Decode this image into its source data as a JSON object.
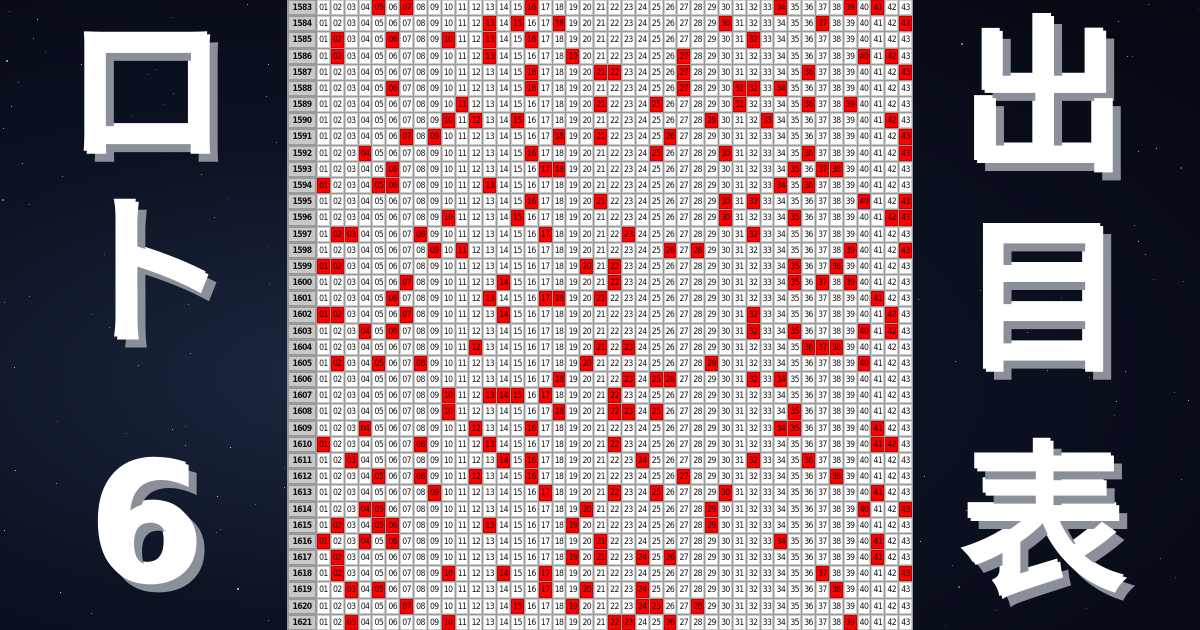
{
  "left_title": [
    "ロ",
    "ト",
    "6"
  ],
  "right_title": [
    "出",
    "目",
    "表"
  ],
  "colors": {
    "hit": "#ff0000",
    "background": "#0c1222",
    "text": "#ffffff"
  },
  "numbers": [
    "01",
    "02",
    "03",
    "04",
    "05",
    "06",
    "07",
    "08",
    "09",
    "10",
    "11",
    "12",
    "13",
    "14",
    "15",
    "16",
    "17",
    "18",
    "19",
    "20",
    "21",
    "22",
    "23",
    "24",
    "25",
    "26",
    "27",
    "28",
    "29",
    "30",
    "31",
    "32",
    "33",
    "34",
    "35",
    "36",
    "37",
    "38",
    "39",
    "40",
    "41",
    "42",
    "43"
  ],
  "draws": [
    {
      "no": "1583",
      "hits": [
        5,
        7,
        16,
        34,
        39,
        41
      ]
    },
    {
      "no": "1584",
      "hits": [
        13,
        15,
        18,
        30,
        37,
        43
      ]
    },
    {
      "no": "1585",
      "hits": [
        2,
        6,
        10,
        13,
        16,
        32
      ]
    },
    {
      "no": "1586",
      "hits": [
        2,
        13,
        19,
        27,
        40,
        42
      ]
    },
    {
      "no": "1587",
      "hits": [
        16,
        21,
        22,
        27,
        36,
        43
      ]
    },
    {
      "no": "1588",
      "hits": [
        6,
        16,
        27,
        31,
        32,
        34
      ]
    },
    {
      "no": "1589",
      "hits": [
        11,
        21,
        25,
        31,
        36,
        39
      ]
    },
    {
      "no": "1590",
      "hits": [
        10,
        12,
        15,
        29,
        33,
        42
      ]
    },
    {
      "no": "1591",
      "hits": [
        7,
        9,
        18,
        21,
        26,
        43
      ]
    },
    {
      "no": "1592",
      "hits": [
        4,
        16,
        25,
        30,
        36,
        43
      ]
    },
    {
      "no": "1593",
      "hits": [
        6,
        17,
        18,
        35,
        37,
        38
      ]
    },
    {
      "no": "1594",
      "hits": [
        1,
        5,
        6,
        13,
        34,
        36
      ]
    },
    {
      "no": "1595",
      "hits": [
        16,
        21,
        30,
        32,
        40,
        43
      ]
    },
    {
      "no": "1596",
      "hits": [
        10,
        15,
        30,
        35,
        42,
        43
      ]
    },
    {
      "no": "1597",
      "hits": [
        2,
        3,
        8,
        17,
        23,
        32
      ]
    },
    {
      "no": "1598",
      "hits": [
        9,
        11,
        26,
        28,
        39,
        43
      ]
    },
    {
      "no": "1599",
      "hits": [
        1,
        2,
        20,
        22,
        35,
        38
      ]
    },
    {
      "no": "1600",
      "hits": [
        7,
        14,
        22,
        35,
        37,
        39
      ]
    },
    {
      "no": "1601",
      "hits": [
        6,
        13,
        17,
        18,
        21,
        41
      ]
    },
    {
      "no": "1602",
      "hits": [
        1,
        2,
        7,
        14,
        32,
        42
      ]
    },
    {
      "no": "1603",
      "hits": [
        4,
        6,
        32,
        35,
        40,
        42
      ]
    },
    {
      "no": "1604",
      "hits": [
        12,
        21,
        23,
        36,
        37,
        38
      ]
    },
    {
      "no": "1605",
      "hits": [
        2,
        5,
        8,
        20,
        29,
        40
      ]
    },
    {
      "no": "1606",
      "hits": [
        18,
        23,
        25,
        26,
        32,
        34
      ]
    },
    {
      "no": "1607",
      "hits": [
        10,
        13,
        14,
        15,
        17,
        22
      ]
    },
    {
      "no": "1608",
      "hits": [
        10,
        18,
        22,
        23,
        25,
        35
      ]
    },
    {
      "no": "1609",
      "hits": [
        4,
        12,
        16,
        34,
        35,
        41
      ]
    },
    {
      "no": "1610",
      "hits": [
        1,
        8,
        13,
        22,
        41,
        42
      ]
    },
    {
      "no": "1611",
      "hits": [
        3,
        14,
        16,
        24,
        32,
        36
      ]
    },
    {
      "no": "1612",
      "hits": [
        5,
        8,
        12,
        16,
        27,
        38
      ]
    },
    {
      "no": "1613",
      "hits": [
        9,
        17,
        22,
        25,
        30,
        41
      ]
    },
    {
      "no": "1614",
      "hits": [
        4,
        5,
        20,
        29,
        40,
        43
      ]
    },
    {
      "no": "1615",
      "hits": [
        2,
        5,
        6,
        13,
        19,
        29
      ]
    },
    {
      "no": "1616",
      "hits": [
        1,
        4,
        6,
        21,
        34,
        41
      ]
    },
    {
      "no": "1617",
      "hits": [
        2,
        19,
        21,
        24,
        26,
        41
      ]
    },
    {
      "no": "1618",
      "hits": [
        2,
        10,
        14,
        17,
        37,
        43
      ]
    },
    {
      "no": "1619",
      "hits": [
        3,
        5,
        17,
        20,
        24,
        38
      ]
    },
    {
      "no": "1620",
      "hits": [
        7,
        15,
        19,
        24,
        25,
        28
      ]
    },
    {
      "no": "1621",
      "hits": [
        3,
        10,
        22,
        23,
        26,
        39
      ]
    }
  ]
}
